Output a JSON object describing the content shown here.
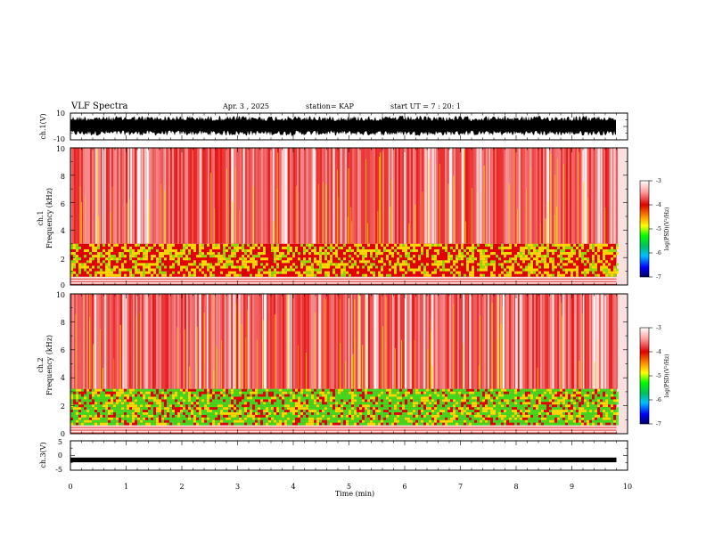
{
  "header": {
    "title": "VLF Spectra",
    "date": "Apr. 3 , 2025",
    "station": "station= KAP",
    "start": "start UT = 7 : 20: 1"
  },
  "chart_data": [
    {
      "type": "line",
      "name": "ch1-waveform",
      "ylabel": "ch.1(V)",
      "ylim": [
        -10,
        10
      ],
      "y_ticks": [
        "10",
        "-10"
      ],
      "xlim": [
        0,
        10
      ],
      "band": {
        "low": -7,
        "high": 8,
        "unit": "V"
      }
    },
    {
      "type": "heatmap",
      "name": "ch1-spectrogram",
      "ylabel_top": "ch.1",
      "ylabel": "Frequency (kHz)",
      "ylim": [
        0,
        10
      ],
      "y_ticks": [
        "0",
        "2",
        "4",
        "6",
        "8",
        "10"
      ],
      "xlim": [
        0,
        10
      ],
      "low_band_khz": [
        0.6,
        3.0
      ],
      "colorbar": {
        "label": "log(PSD)(V²/Hz)",
        "range": [
          -7,
          -3
        ],
        "ticks": [
          "-3",
          "-4",
          "-5",
          "-6",
          "-7"
        ]
      }
    },
    {
      "type": "heatmap",
      "name": "ch2-spectrogram",
      "ylabel_top": "ch.2",
      "ylabel": "Frequency (kHz)",
      "ylim": [
        0,
        10
      ],
      "y_ticks": [
        "0",
        "2",
        "4",
        "6",
        "8",
        "10"
      ],
      "xlim": [
        0,
        10
      ],
      "low_band_khz": [
        0.6,
        3.2
      ],
      "colorbar": {
        "label": "log(PSD)(V²/Hz)",
        "range": [
          -7,
          -3
        ],
        "ticks": [
          "-3",
          "-4",
          "-5",
          "-6",
          "-7"
        ]
      }
    },
    {
      "type": "line",
      "name": "ch3-waveform",
      "ylabel": "ch.3(V)",
      "ylim": [
        -5,
        5
      ],
      "y_ticks": [
        "5",
        "0",
        "-5"
      ],
      "xlim": [
        0,
        10
      ],
      "xlabel": "Time (min)",
      "x_ticks": [
        "0",
        "1",
        "2",
        "3",
        "4",
        "5",
        "6",
        "7",
        "8",
        "9",
        "10"
      ],
      "level": {
        "value": -1.5,
        "amplitude": 0.8,
        "unit": "V"
      }
    }
  ],
  "data_end_min": 9.8
}
